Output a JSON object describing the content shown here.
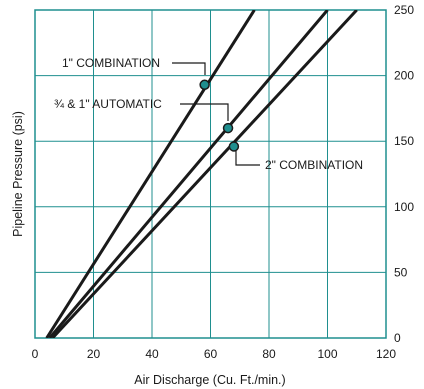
{
  "chart_data": {
    "type": "line",
    "title": "",
    "xlabel": "Air Discharge (Cu. Ft./min.)",
    "ylabel": "Pipeline Pressure (psi)",
    "xlim": [
      0,
      120
    ],
    "ylim": [
      0,
      250
    ],
    "x_ticks": [
      "0",
      "20",
      "40",
      "60",
      "80",
      "100",
      "120"
    ],
    "y_ticks": [
      "0",
      "50",
      "100",
      "150",
      "200",
      "250"
    ],
    "y_axis_side": "right",
    "grid": true,
    "colors": {
      "plot_background": "#ffffff",
      "grid": "#1f8f8f",
      "line": "#1a1a1a",
      "marker": "#1f8f8f"
    },
    "series": [
      {
        "name": "1\" COMBINATION",
        "x": [
          4,
          58,
          75
        ],
        "y": [
          0,
          193,
          250
        ]
      },
      {
        "name": "¾ & 1\" AUTOMATIC",
        "x": [
          5,
          66,
          100
        ],
        "y": [
          0,
          160,
          250
        ]
      },
      {
        "name": "2\" COMBINATION",
        "x": [
          6,
          68,
          110
        ],
        "y": [
          0,
          146,
          250
        ]
      }
    ],
    "annotations": [
      {
        "text": "1\" COMBINATION",
        "x": 58,
        "y": 193
      },
      {
        "text": "¾ & 1\" AUTOMATIC",
        "x": 66,
        "y": 160
      },
      {
        "text": "2\" COMBINATION",
        "x": 68,
        "y": 146
      }
    ]
  }
}
